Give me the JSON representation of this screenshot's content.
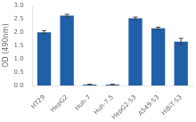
{
  "chart_data": {
    "type": "bar",
    "categories": [
      "HT29",
      "HepG2",
      "Huh-7",
      "Huh-7.5",
      "HepG2-S3",
      "A549-S3",
      "HiBiT-S3"
    ],
    "values": [
      2.0,
      2.62,
      0.04,
      0.04,
      2.52,
      2.15,
      1.65
    ],
    "errors": [
      0.06,
      0.05,
      0.01,
      0.01,
      0.05,
      0.04,
      0.12
    ],
    "color": "#2060A8",
    "ylabel": "OD (490nm)",
    "ylim": [
      0.0,
      3.0
    ],
    "yticks": [
      {
        "value": 0.0,
        "label": "0.0"
      },
      0.5,
      {
        "value": 1.0,
        "label": "1.0"
      },
      1.5,
      {
        "value": 2.0,
        "label": "2.0"
      },
      2.5,
      {
        "value": 3.0,
        "label": "3.0"
      }
    ],
    "grid": false
  }
}
